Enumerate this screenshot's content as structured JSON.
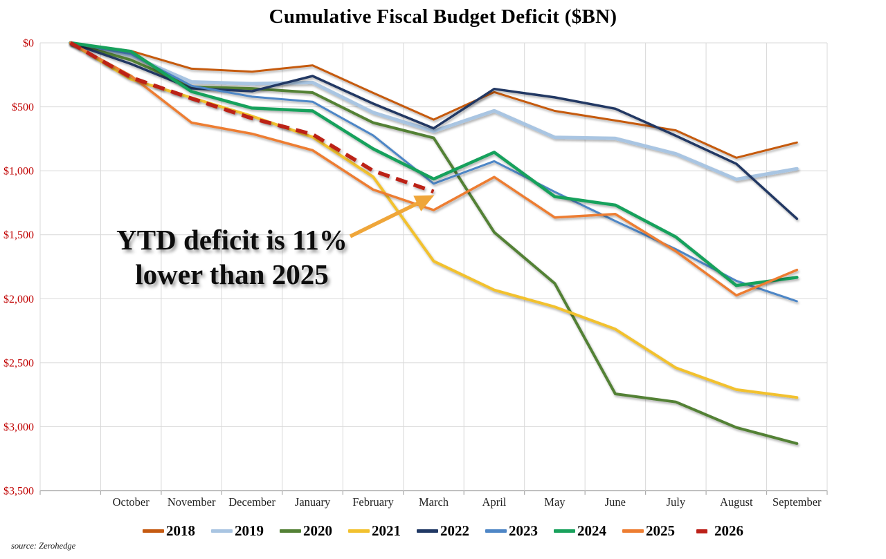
{
  "title": "Cumulative Fiscal Budget Deficit ($BN)",
  "source": "source: Zerohedge",
  "annotation": {
    "line1": "YTD deficit is 11%",
    "line2": "lower than 2025",
    "arrow_color": "#EFA63A"
  },
  "chart_data": {
    "type": "line",
    "title": "Cumulative Fiscal Budget Deficit ($BN)",
    "x_categories": [
      "",
      "October",
      "November",
      "December",
      "January",
      "February",
      "March",
      "April",
      "May",
      "June",
      "July",
      "August",
      "September"
    ],
    "y_axis": {
      "min": 0,
      "max": 3500,
      "step": 500,
      "tick_labels": [
        "$0",
        "$500",
        "$1,000",
        "$1,500",
        "$2,000",
        "$2,500",
        "$3,000",
        "$3,500"
      ],
      "tick_label_color": "#C00000",
      "direction": "deficit-down"
    },
    "grid": true,
    "grid_color": "#D9D9D9",
    "axis_color": "#ABABAB",
    "x_label_color": "#1F1F1F",
    "legend_position": "bottom",
    "series": [
      {
        "name": "2018",
        "color": "#C55A11",
        "width": 3,
        "dashed": false,
        "values": [
          0,
          63,
          202,
          225,
          176,
          391,
          600,
          385,
          532,
          607,
          684,
          898,
          779
        ]
      },
      {
        "name": "2019",
        "color": "#A9C5E2",
        "width": 5,
        "dashed": false,
        "values": [
          0,
          100,
          305,
          319,
          310,
          544,
          691,
          531,
          739,
          747,
          867,
          1067,
          984
        ]
      },
      {
        "name": "2020",
        "color": "#538135",
        "width": 4,
        "dashed": false,
        "values": [
          0,
          134,
          343,
          357,
          389,
          624,
          743,
          1481,
          1880,
          2744,
          2807,
          3007,
          3132
        ]
      },
      {
        "name": "2021",
        "color": "#F2C12E",
        "width": 4,
        "dashed": false,
        "values": [
          0,
          284,
          429,
          573,
          736,
          1047,
          1706,
          1932,
          2064,
          2238,
          2540,
          2711,
          2772
        ]
      },
      {
        "name": "2022",
        "color": "#203864",
        "width": 3.5,
        "dashed": false,
        "values": [
          0,
          165,
          356,
          378,
          259,
          475,
          668,
          360,
          426,
          515,
          726,
          946,
          1375
        ]
      },
      {
        "name": "2023",
        "color": "#4E86C6",
        "width": 3,
        "dashed": false,
        "values": [
          0,
          88,
          336,
          421,
          460,
          723,
          1101,
          925,
          1165,
          1393,
          1613,
          1860,
          2020
        ]
      },
      {
        "name": "2024",
        "color": "#19A15C",
        "width": 4.5,
        "dashed": false,
        "values": [
          0,
          67,
          381,
          510,
          532,
          828,
          1064,
          855,
          1202,
          1268,
          1517,
          1897,
          1833
        ]
      },
      {
        "name": "2025",
        "color": "#ED7D31",
        "width": 3.5,
        "dashed": false,
        "values": [
          0,
          257,
          624,
          711,
          840,
          1147,
          1307,
          1049,
          1365,
          1338,
          1629,
          1974,
          1775
        ]
      },
      {
        "name": "2026",
        "color": "#BC2018",
        "width": 5.5,
        "dashed": true,
        "values": [
          0,
          270,
          435,
          590,
          715,
          1000,
          1163,
          null,
          null,
          null,
          null,
          null,
          null
        ]
      }
    ]
  }
}
